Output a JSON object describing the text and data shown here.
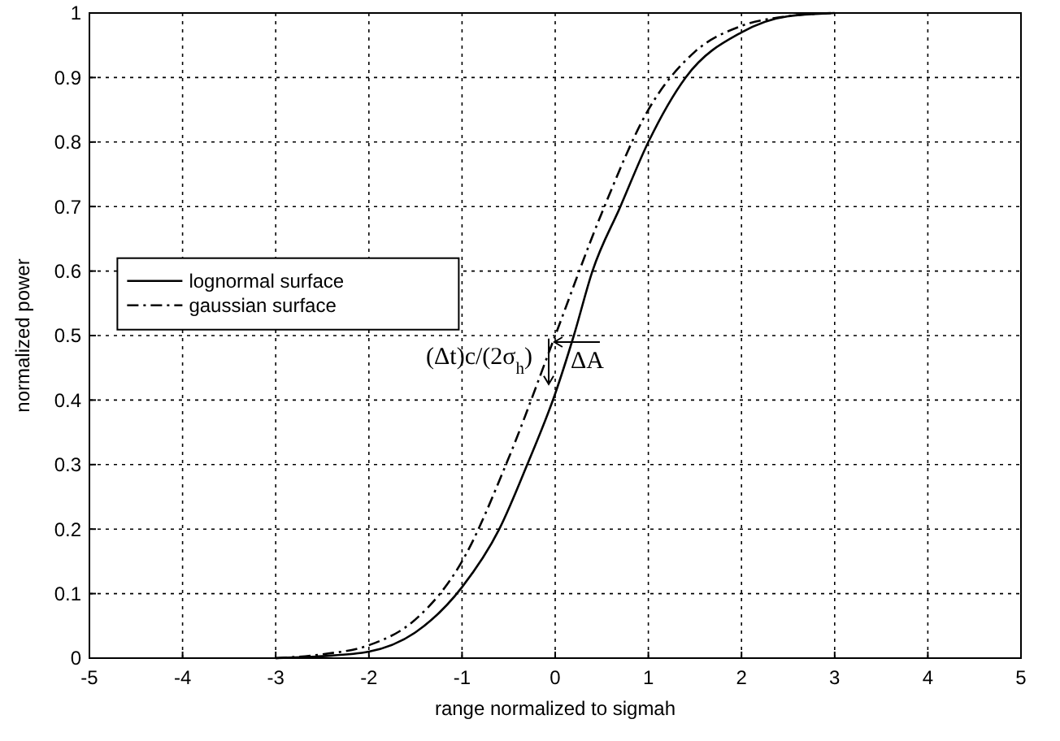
{
  "chart_data": {
    "type": "line",
    "xlabel": "range normalized to sigmah",
    "ylabel": "normalized power",
    "xlim": [
      -5,
      5
    ],
    "xticks": [
      -5,
      -4,
      -3,
      -2,
      -1,
      0,
      1,
      2,
      3,
      4,
      5
    ],
    "ylim": [
      0,
      1
    ],
    "yticks": [
      0,
      0.1,
      0.2,
      0.3,
      0.4,
      0.5,
      0.6,
      0.7,
      0.8,
      0.9,
      1
    ],
    "grid": true,
    "legend": "left",
    "series": [
      {
        "name": "lognormal surface",
        "color": "#000000",
        "line_style": "solid",
        "x": [
          -3,
          -2.5,
          -2,
          -1.5,
          -1,
          -0.6,
          -0.3,
          0,
          0.2,
          0.4,
          0.7,
          1,
          1.4,
          2,
          2.5,
          3
        ],
        "values": [
          0,
          0.003,
          0.01,
          0.04,
          0.11,
          0.2,
          0.3,
          0.41,
          0.5,
          0.6,
          0.7,
          0.8,
          0.9,
          0.97,
          0.995,
          1
        ]
      },
      {
        "name": "gaussian surface",
        "color": "#000000",
        "line_style": "dashed",
        "x": [
          -3,
          -2.5,
          -2,
          -1.5,
          -1,
          -0.5,
          0,
          0.5,
          1,
          1.5,
          2,
          2.5,
          3
        ],
        "values": [
          0,
          0.006,
          0.02,
          0.06,
          0.15,
          0.31,
          0.5,
          0.69,
          0.85,
          0.94,
          0.98,
          0.995,
          1
        ]
      }
    ],
    "annotations": [
      {
        "text": "(Δt)c/(2σ$_{h}$)",
        "x": 0,
        "y": 0.46
      },
      {
        "text": "ΔA",
        "x": 0.2,
        "y": 0.5
      }
    ]
  }
}
